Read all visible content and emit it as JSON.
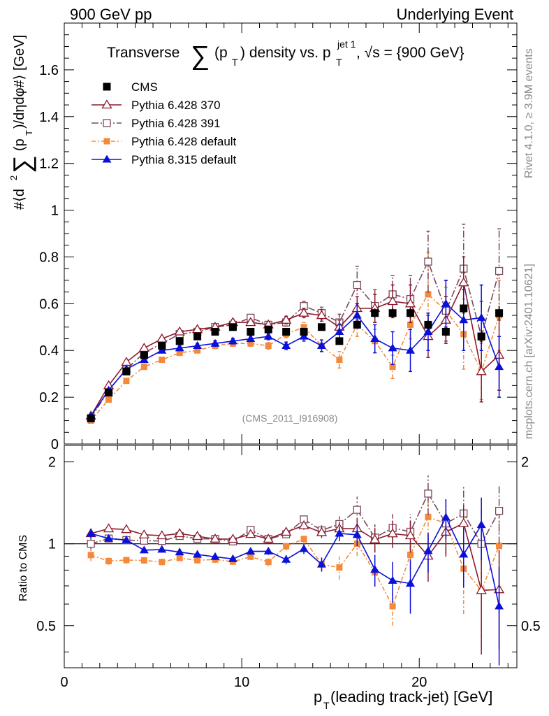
{
  "header": {
    "left": "900 GeV pp",
    "right": "Underlying Event"
  },
  "side_labels": {
    "rivet": "Rivet 4.1.0, ≥ 3.9M events",
    "mcplots": "mcplots.cern.ch [arXiv:2401.10621]"
  },
  "watermark": "(CMS_2011_I916908)",
  "chart_data": {
    "type": "scatter",
    "title": "Transverse ∑(pT) density vs. pT^jet 1, √s = {900 GeV}",
    "title_parts": {
      "pre": "Transverse",
      "sum": "∑",
      "paren_open": "(p",
      "sub_T": "T",
      "paren_close": ") density vs. p",
      "sup": "jet 1",
      "post": ", √s = {900 GeV}"
    },
    "ylabel": "#⟨d² ∑(pT)/dηdφ#⟩ [GeV]",
    "ylabel_parts": {
      "pre": "#⟨d",
      "sup2": "2",
      "sum": "∑",
      "mid": "(p",
      "subT": "T",
      "post": ")/dηdφ#⟩ [GeV]"
    },
    "xlabel": "pT (leading track-jet) [GeV]",
    "xlabel_parts": {
      "p": "p",
      "T": "T",
      "rest": " (leading track-jet) [GeV]"
    },
    "ratio_ylabel": "Ratio to CMS",
    "xlim": [
      0,
      25.5
    ],
    "ylim": [
      0,
      1.8
    ],
    "ratio_ylim": [
      0.35,
      2.3
    ],
    "x_ticks": [
      0,
      10,
      20
    ],
    "x_tick_labels": [
      "0",
      "10",
      "20"
    ],
    "y_ticks": [
      0,
      0.2,
      0.4,
      0.6,
      0.8,
      1,
      1.2,
      1.4,
      1.6
    ],
    "y_tick_labels": [
      "0",
      "0.2",
      "0.4",
      "0.6",
      "0.8",
      "1",
      "1.2",
      "1.4",
      "1.6"
    ],
    "ratio_ticks": [
      0.5,
      1,
      2
    ],
    "ratio_tick_labels": [
      "0.5",
      "1",
      "2"
    ],
    "x": [
      1.5,
      2.5,
      3.5,
      4.5,
      5.5,
      6.5,
      7.5,
      8.5,
      9.5,
      10.5,
      11.5,
      12.5,
      13.5,
      14.5,
      15.5,
      16.5,
      17.5,
      18.5,
      19.5,
      20.5,
      21.5,
      22.5,
      23.5,
      24.5
    ],
    "data": {
      "name": "CMS",
      "values": [
        0.11,
        0.22,
        0.31,
        0.38,
        0.42,
        0.44,
        0.46,
        0.48,
        0.5,
        0.48,
        0.49,
        0.48,
        0.48,
        0.5,
        0.44,
        0.51,
        0.56,
        0.56,
        0.56,
        0.51,
        0.48,
        0.58,
        0.46,
        0.56
      ],
      "errors": [
        0.005,
        0.005,
        0.008,
        0.008,
        0.008,
        0.01,
        0.01,
        0.01,
        0.01,
        0.01,
        0.01,
        0.01,
        0.012,
        0.012,
        0.012,
        0.015,
        0.02,
        0.02,
        0.02,
        0.02,
        0.02,
        0.02,
        0.025,
        0.03
      ]
    },
    "series": [
      {
        "name": "Pythia 6.428 370",
        "color": "#8b1a2b",
        "marker": "triangle-open",
        "dash": "",
        "values": [
          0.12,
          0.25,
          0.35,
          0.41,
          0.45,
          0.48,
          0.49,
          0.5,
          0.52,
          0.52,
          0.51,
          0.53,
          0.56,
          0.55,
          0.5,
          0.58,
          0.58,
          0.61,
          0.6,
          0.46,
          0.53,
          0.69,
          0.31,
          0.38
        ],
        "errors": [
          0.005,
          0.006,
          0.008,
          0.008,
          0.01,
          0.01,
          0.01,
          0.012,
          0.012,
          0.012,
          0.014,
          0.016,
          0.02,
          0.025,
          0.03,
          0.05,
          0.06,
          0.07,
          0.08,
          0.09,
          0.1,
          0.11,
          0.13,
          0.15
        ]
      },
      {
        "name": "Pythia 6.428 391",
        "color": "#7a4a5a",
        "marker": "square-open",
        "dash": "10 3 2 3",
        "values": [
          0.11,
          0.23,
          0.32,
          0.39,
          0.43,
          0.47,
          0.48,
          0.5,
          0.51,
          0.54,
          0.51,
          0.52,
          0.59,
          0.56,
          0.52,
          0.68,
          0.59,
          0.64,
          0.62,
          0.78,
          0.57,
          0.75,
          0.46,
          0.74
        ],
        "errors": [
          0.005,
          0.006,
          0.008,
          0.008,
          0.01,
          0.01,
          0.01,
          0.012,
          0.012,
          0.012,
          0.014,
          0.016,
          0.02,
          0.025,
          0.035,
          0.08,
          0.07,
          0.08,
          0.1,
          0.13,
          0.13,
          0.19,
          0.15,
          0.18
        ]
      },
      {
        "name": "Pythia 6.428 default",
        "color": "#f5893a",
        "marker": "square-filled",
        "dash": "6 3 2 3",
        "values": [
          0.1,
          0.19,
          0.27,
          0.33,
          0.36,
          0.39,
          0.4,
          0.42,
          0.43,
          0.43,
          0.42,
          0.47,
          0.5,
          0.42,
          0.36,
          0.51,
          0.44,
          0.33,
          0.51,
          0.64,
          0.57,
          0.47,
          0.31,
          0.55
        ],
        "errors": [
          0.005,
          0.006,
          0.008,
          0.008,
          0.01,
          0.01,
          0.01,
          0.012,
          0.012,
          0.012,
          0.014,
          0.016,
          0.02,
          0.025,
          0.035,
          0.05,
          0.05,
          0.05,
          0.06,
          0.18,
          0.1,
          0.15,
          0.12,
          0.15
        ]
      },
      {
        "name": "Pythia 8.315 default",
        "color": "#0a10d8",
        "marker": "triangle-filled",
        "dash": "",
        "values": [
          0.12,
          0.23,
          0.32,
          0.36,
          0.4,
          0.41,
          0.42,
          0.43,
          0.44,
          0.45,
          0.46,
          0.42,
          0.46,
          0.42,
          0.48,
          0.55,
          0.45,
          0.41,
          0.4,
          0.48,
          0.6,
          0.53,
          0.54,
          0.33
        ],
        "errors": [
          0.005,
          0.006,
          0.008,
          0.008,
          0.01,
          0.01,
          0.01,
          0.012,
          0.012,
          0.012,
          0.014,
          0.016,
          0.02,
          0.025,
          0.03,
          0.05,
          0.06,
          0.07,
          0.09,
          0.08,
          0.1,
          0.13,
          0.14,
          0.13
        ]
      }
    ]
  }
}
